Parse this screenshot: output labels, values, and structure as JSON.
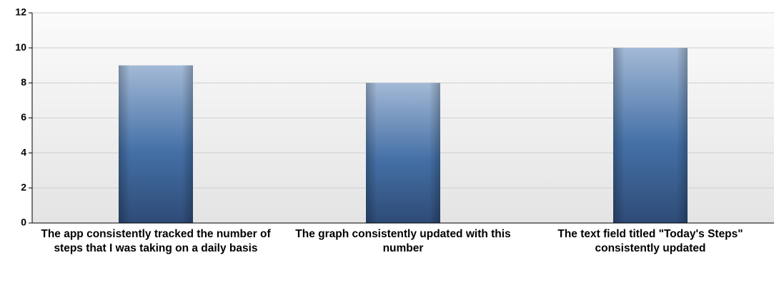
{
  "chart_data": {
    "type": "bar",
    "categories": [
      "The app consistently tracked the number of steps that I was taking on a daily basis",
      "The graph consistently updated with this number",
      "The text field titled \"Today's Steps\" consistently updated"
    ],
    "values": [
      9,
      8,
      10
    ],
    "color": "#4470a6",
    "ylim": [
      0,
      12
    ],
    "yticks": [
      0,
      2,
      4,
      6,
      8,
      10,
      12
    ],
    "grid": true
  }
}
